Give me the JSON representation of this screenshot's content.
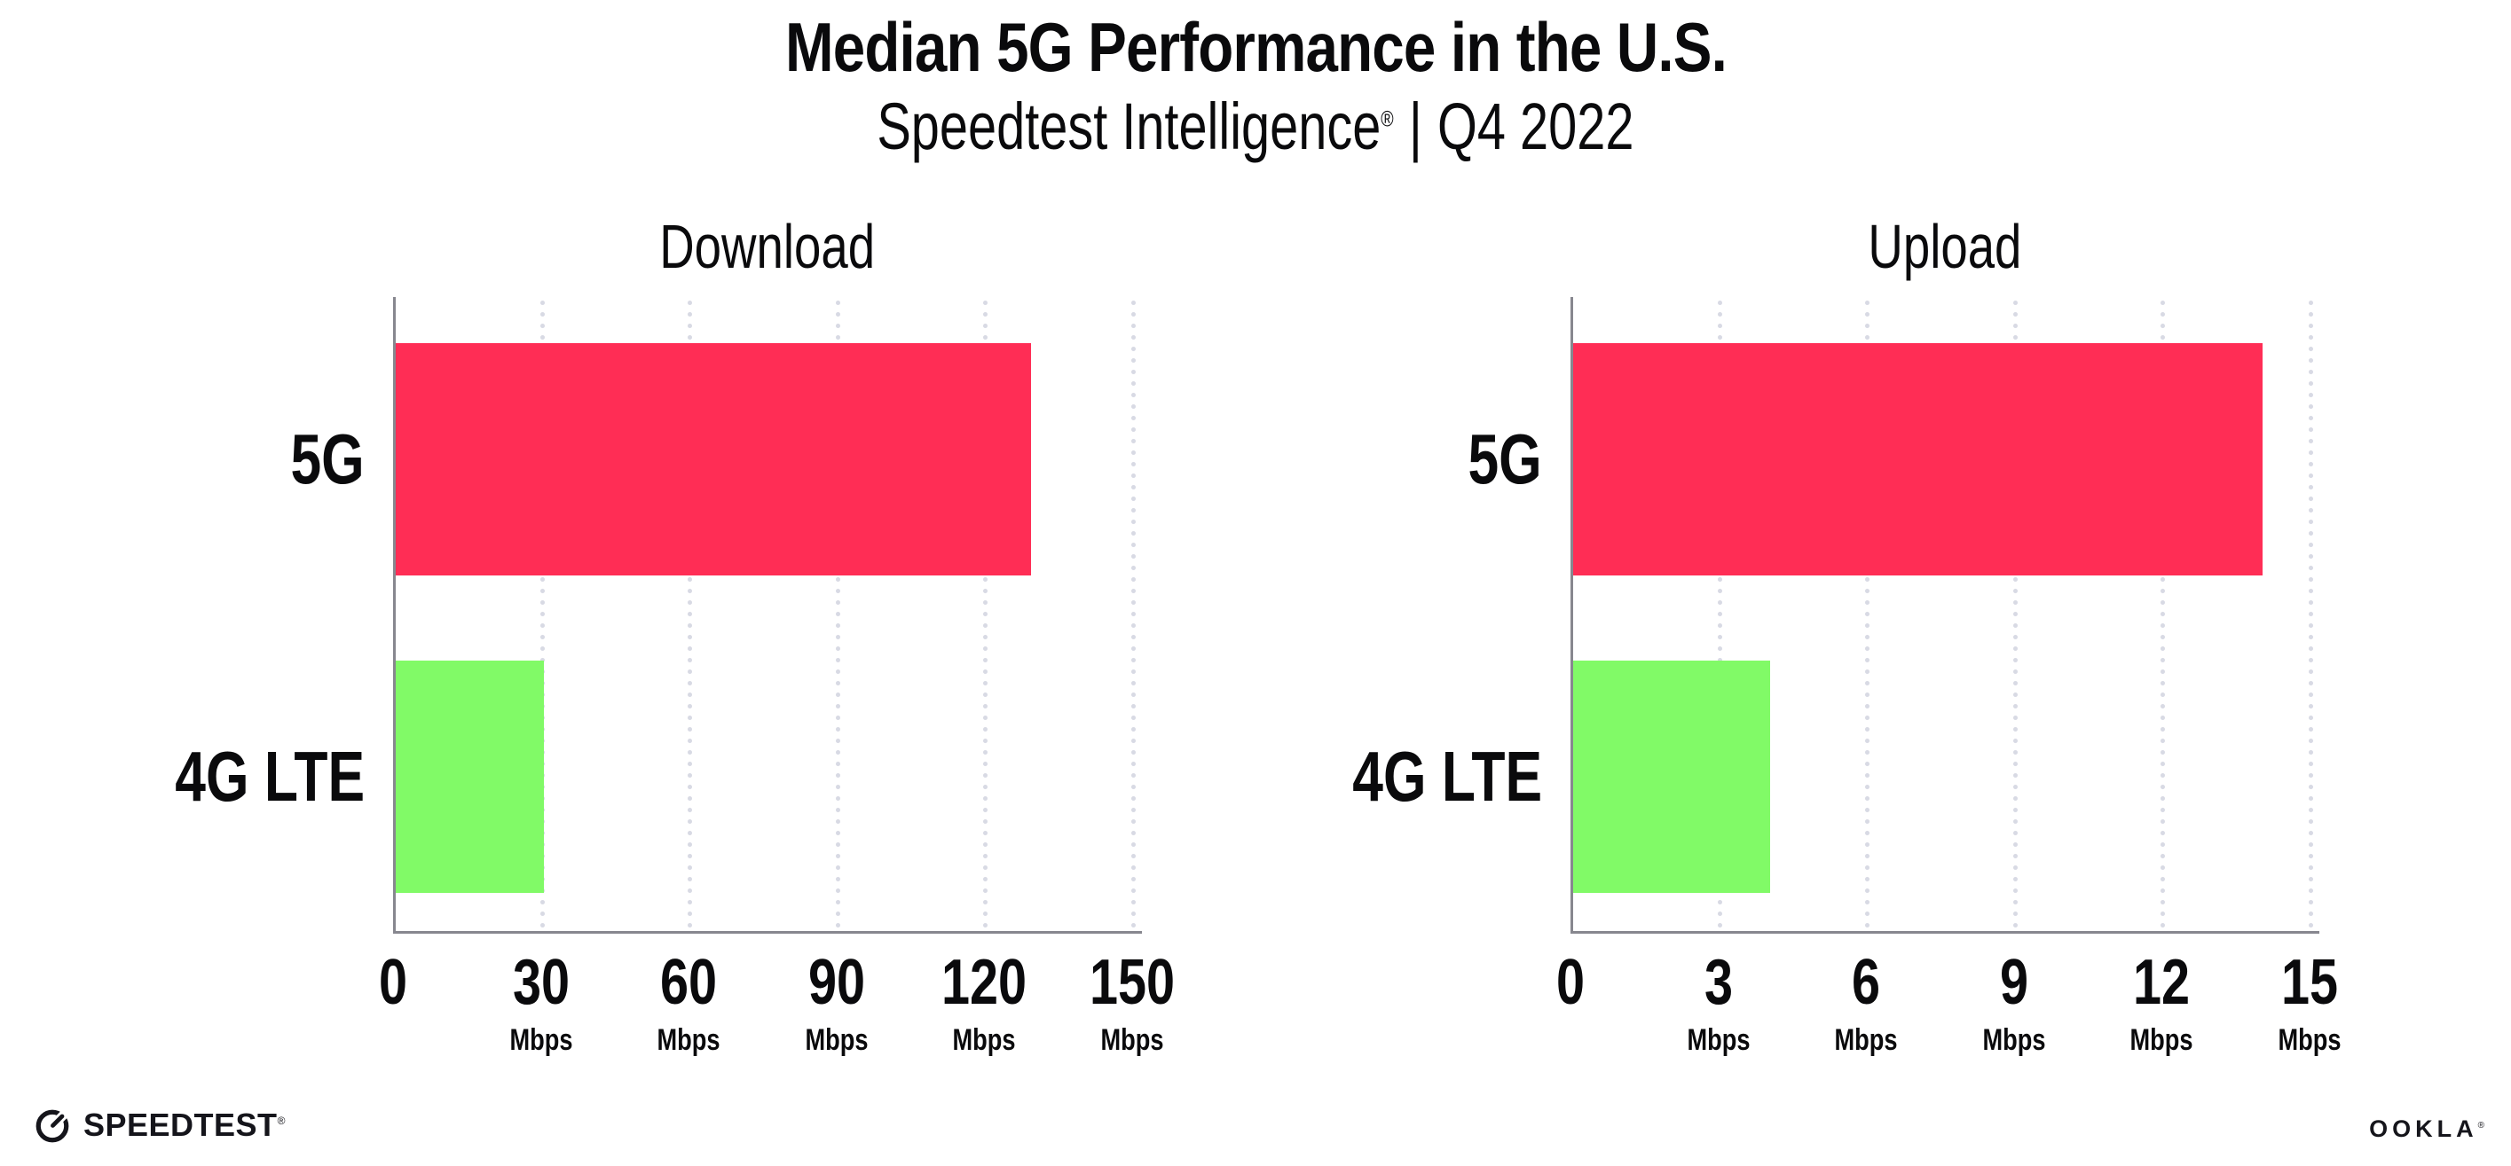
{
  "header": {
    "title": "Median 5G Performance in the U.S.",
    "subtitle_brand": "Speedtest Intelligence",
    "subtitle_mark": "®",
    "subtitle_separator": "|",
    "subtitle_period": "Q4 2022"
  },
  "chart_data": [
    {
      "type": "bar",
      "orientation": "horizontal",
      "title": "Download",
      "categories": [
        "5G",
        "4G LTE"
      ],
      "values": [
        129,
        30
      ],
      "unit": "Mbps",
      "xlim": [
        0,
        150
      ],
      "xticks": [
        0,
        30,
        60,
        90,
        120,
        150
      ],
      "bar_colors": [
        "#FF2D55",
        "#81FA67"
      ],
      "grid": "dotted-vertical",
      "legend": "none"
    },
    {
      "type": "bar",
      "orientation": "horizontal",
      "title": "Upload",
      "categories": [
        "5G",
        "4G LTE"
      ],
      "values": [
        14,
        4
      ],
      "unit": "Mbps",
      "xlim": [
        0,
        15
      ],
      "xticks": [
        0,
        3,
        6,
        9,
        12,
        15
      ],
      "bar_colors": [
        "#FF2D55",
        "#81FA67"
      ],
      "grid": "dotted-vertical",
      "legend": "none"
    }
  ],
  "footer": {
    "speedtest_logo_text": "SPEEDTEST",
    "speedtest_mark": "®",
    "ookla_logo_text": "OOKLA",
    "ookla_mark": "®"
  },
  "colors": {
    "bar_5g": "#FF2D55",
    "bar_4g_lte": "#81FA67",
    "axis": "#87878f",
    "grid_dots": "#d8dae4",
    "text": "#0a0a0c",
    "background": "#ffffff"
  }
}
